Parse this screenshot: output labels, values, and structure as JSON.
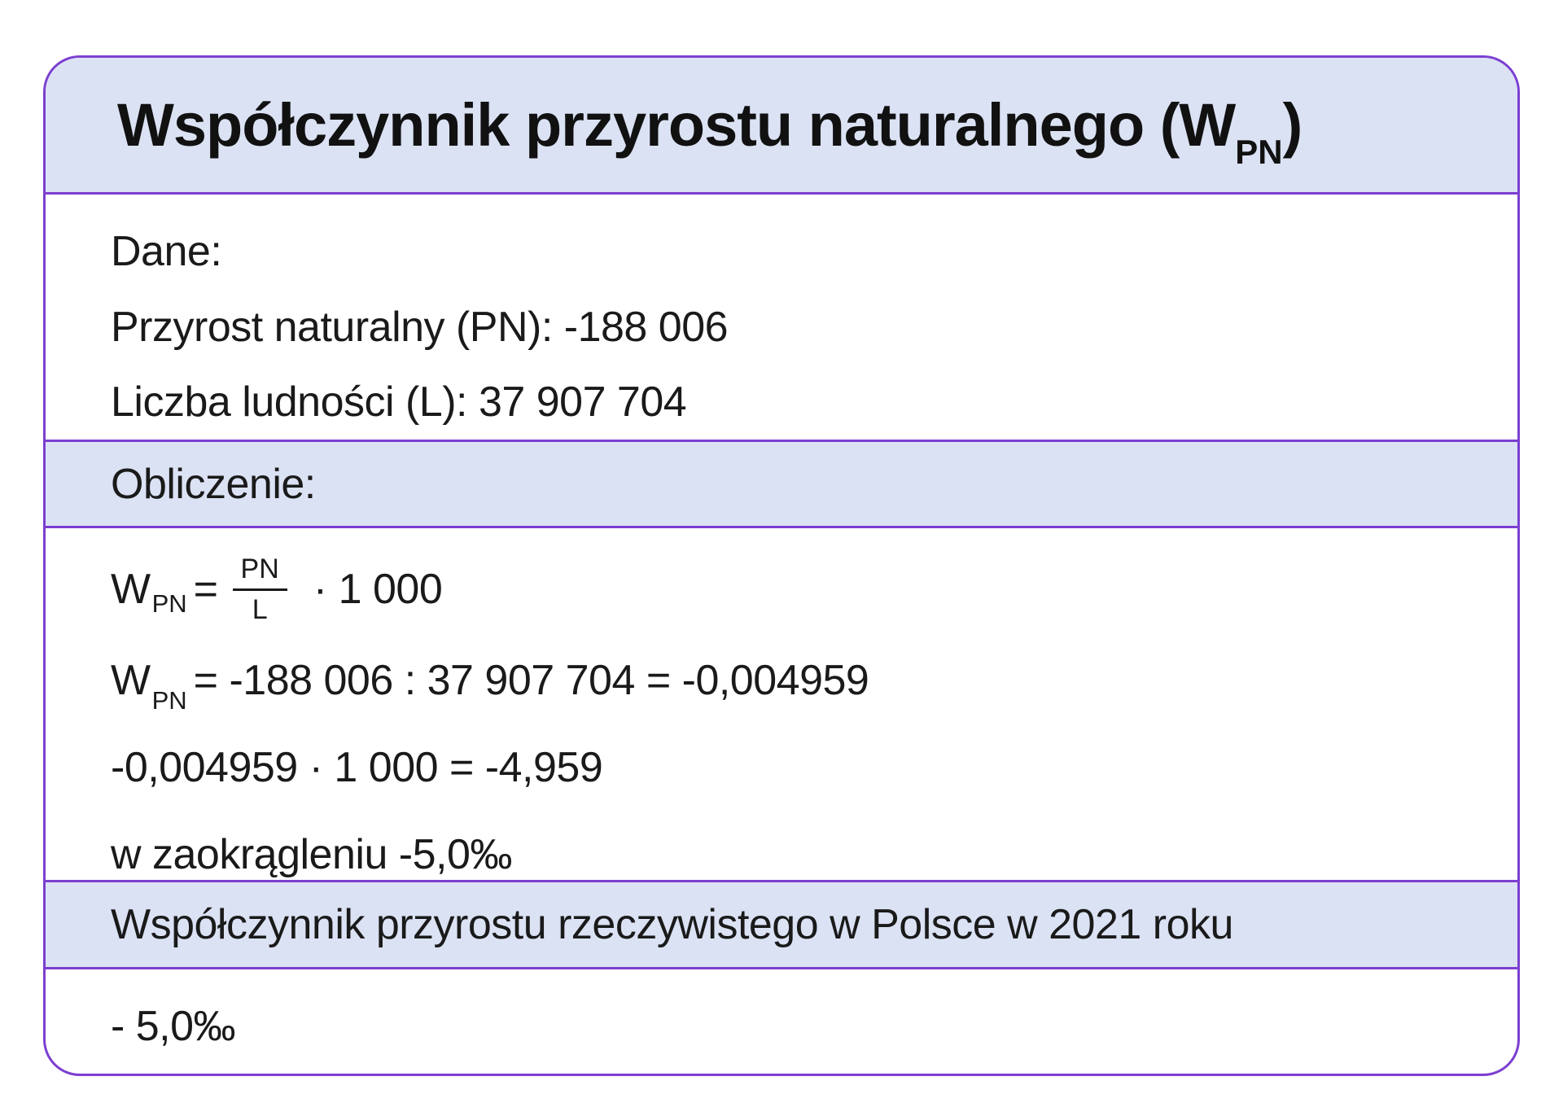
{
  "colors": {
    "page-bg": "#ffffff",
    "band-bg": "#dbe2f4",
    "border-purple": "#7c3fd0",
    "text-color": "#1a1a1a"
  },
  "card": {
    "title": {
      "text": "Współczynnik przyrostu naturalnego (W",
      "subscript": "PN",
      "close": ")"
    },
    "dane": {
      "label": "Dane:",
      "lines": [
        "Przyrost naturalny (PN): -188 006",
        "Liczba ludności (L): 37 907 704"
      ]
    },
    "obliczenie": {
      "label": "Obliczenie:",
      "formula": {
        "symbol": "W",
        "symbol_sub": "PN",
        "equals": "=",
        "numerator": "PN",
        "denominator": "L",
        "operator": "·",
        "multiplier": "1 000"
      },
      "steps": [
        {
          "symbol": "W",
          "symbol_sub": "PN",
          "expression": "= -188 006 : 37 907 704 = -0,004959"
        },
        {
          "expression": "-0,004959 · 1 000 = -4,959"
        },
        {
          "expression": "w zaokrągleniu -5,0‰"
        }
      ]
    },
    "result_band": {
      "label": "Współczynnik przyrostu rzeczywistego w Polsce w 2021 roku"
    },
    "result": {
      "value": "- 5,0‰"
    }
  }
}
